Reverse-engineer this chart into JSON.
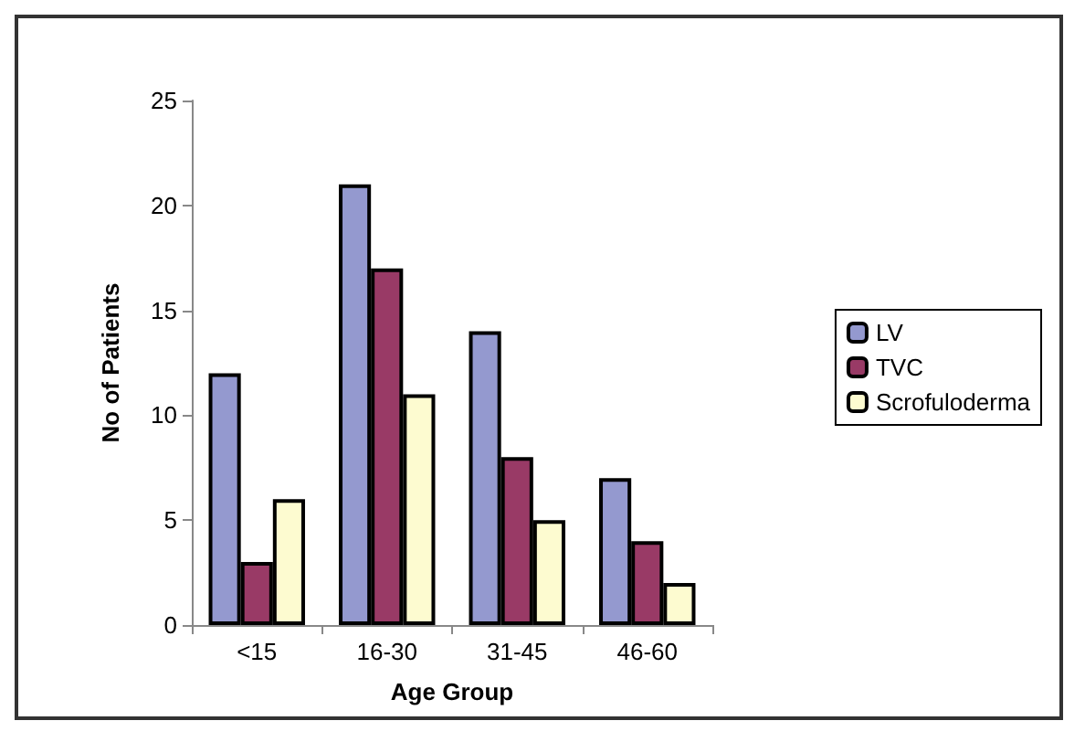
{
  "chart_data": {
    "type": "bar",
    "xlabel": "Age Group",
    "ylabel": "No of Patients",
    "categories": [
      "<15",
      "16-30",
      "31-45",
      "46-60"
    ],
    "series": [
      {
        "name": "LV",
        "color": "#9499cf",
        "values": [
          12,
          21,
          14,
          7
        ]
      },
      {
        "name": "TVC",
        "color": "#993a66",
        "values": [
          3,
          17,
          8,
          4
        ]
      },
      {
        "name": "Scrofuloderma",
        "color": "#fdfbd0",
        "values": [
          6,
          11,
          5,
          2
        ]
      }
    ],
    "ylim": [
      0,
      25
    ],
    "yticks": [
      0,
      5,
      10,
      15,
      20,
      25
    ],
    "grid": false,
    "legend": "right"
  }
}
